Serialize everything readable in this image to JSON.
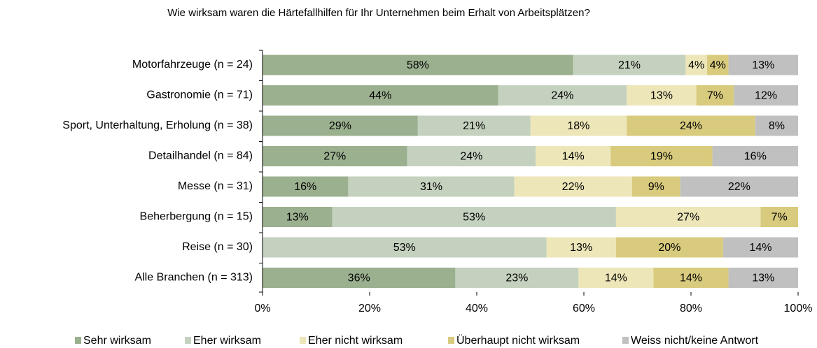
{
  "chart_data": {
    "type": "stacked-bar-horizontal",
    "title": "Wie wirksam waren die Härtefallhilfen für Ihr Unternehmen beim Erhalt von Arbeitsplätzen?",
    "categories": [
      "Motorfahrzeuge (n = 24)",
      "Gastronomie (n = 71)",
      "Sport, Unterhaltung, Erholung (n = 38)",
      "Detailhandel (n = 84)",
      "Messe (n = 31)",
      "Beherbergung (n = 15)",
      "Reise (n = 30)",
      "Alle Branchen (n = 313)"
    ],
    "series": [
      {
        "name": "Sehr wirksam",
        "color": "#9bb08f",
        "values": [
          58,
          44,
          29,
          27,
          16,
          13,
          null,
          36
        ],
        "value_labels": [
          "58%",
          "44%",
          "29%",
          "27%",
          "16%",
          "13%",
          null,
          "36%"
        ]
      },
      {
        "name": "Eher wirksam",
        "color": "#c5d1bf",
        "values": [
          21,
          24,
          21,
          24,
          31,
          53,
          53,
          23
        ],
        "value_labels": [
          "21%",
          "24%",
          "21%",
          "24%",
          "31%",
          "53%",
          "53%",
          "23%"
        ]
      },
      {
        "name": "Eher nicht wirksam",
        "color": "#ede6b8",
        "values": [
          4,
          13,
          18,
          14,
          22,
          27,
          13,
          14
        ],
        "value_labels": [
          "4%",
          "13%",
          "18%",
          "14%",
          "22%",
          "27%",
          "13%",
          "14%"
        ]
      },
      {
        "name": "Überhaupt nicht wirksam",
        "color": "#d9cb7e",
        "values": [
          4,
          7,
          24,
          19,
          9,
          7,
          20,
          14
        ],
        "value_labels": [
          "4%",
          "7%",
          "24%",
          "19%",
          "9%",
          "7%",
          "20%",
          "14%"
        ]
      },
      {
        "name": "Weiss nicht/keine Antwort",
        "color": "#c0c0c0",
        "values": [
          13,
          12,
          8,
          16,
          22,
          null,
          14,
          13
        ],
        "value_labels": [
          "13%",
          "12%",
          "8%",
          "16%",
          "22%",
          null,
          "14%",
          "13%"
        ]
      }
    ],
    "xlim": [
      0,
      100
    ],
    "xticks": [
      {
        "value": 0,
        "label": "0%"
      },
      {
        "value": 20,
        "label": "20%"
      },
      {
        "value": 40,
        "label": "40%"
      },
      {
        "value": 60,
        "label": "60%"
      },
      {
        "value": 80,
        "label": "80%"
      },
      {
        "value": 100,
        "label": "100%"
      }
    ],
    "legend": "bottom"
  }
}
